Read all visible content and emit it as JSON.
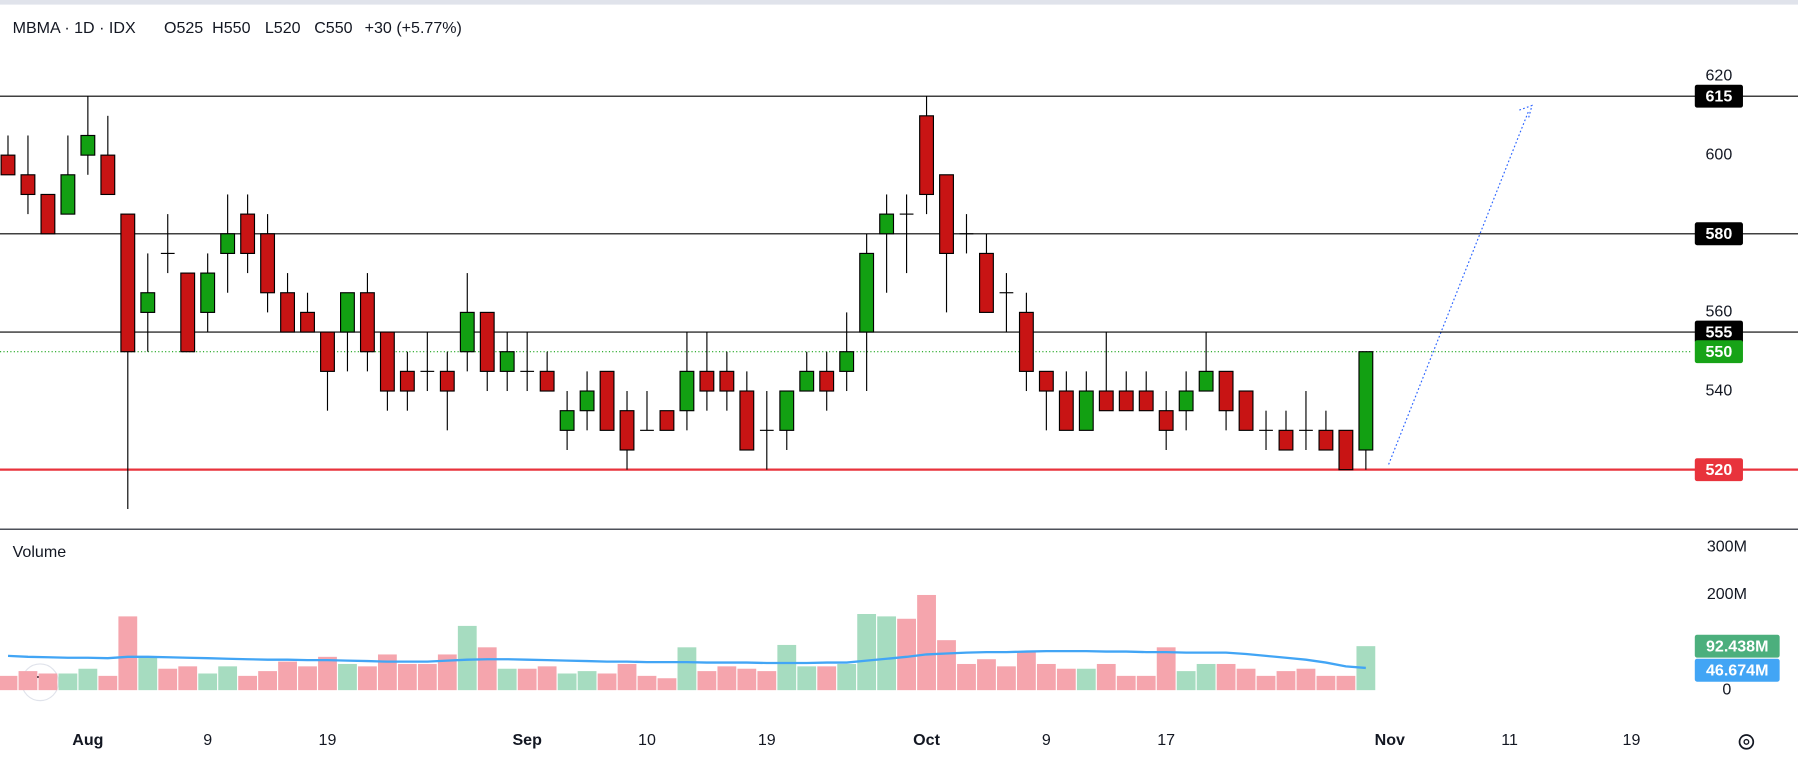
{
  "chart_data": {
    "type": "candlestick",
    "header": {
      "symbol": "MBMA · 1D · IDX",
      "open": "O525",
      "high": "H550",
      "low": "L520",
      "close": "C550",
      "change": "+30 (+5.77%)"
    },
    "xlim": [
      -0.4,
      84.3
    ],
    "xticks": [
      {
        "value": 4,
        "label": "Aug"
      },
      {
        "value": 10,
        "label": "9"
      },
      {
        "value": 16,
        "label": "19"
      },
      {
        "value": 26,
        "label": "Sep"
      },
      {
        "value": 32,
        "label": "10"
      },
      {
        "value": 38,
        "label": "19"
      },
      {
        "value": 46,
        "label": "Oct"
      },
      {
        "value": 52,
        "label": "9"
      },
      {
        "value": 58,
        "label": "17"
      },
      {
        "value": 69.2,
        "label": "Nov"
      },
      {
        "value": 75.2,
        "label": "11"
      },
      {
        "value": 81.3,
        "label": "19"
      }
    ],
    "ylim": [
      505,
      638
    ],
    "yticks": [
      540,
      560,
      600,
      620
    ],
    "up_color": "#12a012",
    "down_color": "#c81414",
    "candles": {
      "open": [
        600,
        595,
        590,
        585,
        600,
        600,
        585,
        560,
        575,
        570,
        560,
        575,
        585,
        580,
        565,
        560,
        555,
        555,
        565,
        555,
        545,
        545,
        545,
        550,
        560,
        545,
        545,
        545,
        530,
        535,
        545,
        535,
        530,
        535,
        535,
        545,
        545,
        540,
        530,
        530,
        540,
        545,
        545,
        555,
        580,
        585,
        610,
        595,
        580,
        575,
        565,
        560,
        545,
        540,
        530,
        540,
        540,
        540,
        535,
        535,
        540,
        545,
        540,
        530,
        530,
        530,
        530,
        530,
        525
      ],
      "high": [
        605,
        605,
        590,
        605,
        615,
        610,
        585,
        575,
        585,
        570,
        575,
        590,
        590,
        585,
        570,
        565,
        555,
        565,
        570,
        555,
        550,
        555,
        550,
        570,
        560,
        555,
        555,
        550,
        540,
        545,
        545,
        540,
        540,
        535,
        555,
        555,
        550,
        545,
        540,
        540,
        550,
        550,
        560,
        580,
        590,
        590,
        615,
        595,
        585,
        580,
        570,
        565,
        545,
        545,
        545,
        555,
        545,
        545,
        540,
        545,
        555,
        545,
        540,
        535,
        535,
        540,
        535,
        530,
        550
      ],
      "low": [
        595,
        585,
        580,
        585,
        595,
        590,
        510,
        550,
        570,
        550,
        555,
        565,
        570,
        560,
        555,
        555,
        535,
        545,
        545,
        535,
        535,
        540,
        530,
        545,
        540,
        540,
        540,
        540,
        525,
        530,
        530,
        520,
        530,
        530,
        530,
        535,
        535,
        525,
        520,
        525,
        540,
        535,
        540,
        540,
        565,
        570,
        585,
        560,
        575,
        560,
        555,
        540,
        530,
        530,
        530,
        535,
        535,
        535,
        525,
        530,
        540,
        530,
        530,
        525,
        525,
        525,
        525,
        520,
        520
      ],
      "close": [
        595,
        590,
        580,
        595,
        605,
        590,
        550,
        565,
        575,
        550,
        570,
        580,
        575,
        565,
        555,
        555,
        545,
        565,
        550,
        540,
        540,
        545,
        540,
        560,
        545,
        550,
        545,
        540,
        535,
        540,
        530,
        525,
        530,
        530,
        545,
        540,
        540,
        525,
        530,
        540,
        545,
        540,
        550,
        575,
        585,
        585,
        590,
        575,
        580,
        560,
        565,
        545,
        540,
        530,
        540,
        535,
        535,
        535,
        530,
        540,
        545,
        535,
        530,
        530,
        525,
        530,
        525,
        520,
        550
      ]
    },
    "levels": [
      {
        "value": 615,
        "color": "#000000"
      },
      {
        "value": 580,
        "color": "#000000"
      },
      {
        "value": 555,
        "color": "#000000"
      },
      {
        "value": 520,
        "color": "#e8333c"
      }
    ],
    "last_price_color": "#17a317",
    "volume": {
      "label": "Volume",
      "ylim": [
        -63,
        337
      ],
      "yticks": [
        {
          "value": 0,
          "label": "0"
        },
        {
          "value": 200,
          "label": "200M"
        },
        {
          "value": 300,
          "label": "300M"
        }
      ],
      "up_color": "#a6dcc0",
      "down_color": "#f5a5ad",
      "last_color": "#4caf7d",
      "values": [
        30,
        40,
        35,
        35,
        45,
        30,
        155,
        70,
        45,
        50,
        35,
        50,
        30,
        40,
        60,
        50,
        70,
        55,
        50,
        75,
        55,
        55,
        75,
        135,
        90,
        45,
        45,
        50,
        35,
        40,
        35,
        55,
        30,
        25,
        90,
        40,
        50,
        45,
        40,
        95,
        50,
        50,
        55,
        160,
        155,
        150,
        200,
        105,
        55,
        65,
        50,
        80,
        55,
        45,
        45,
        55,
        30,
        30,
        90,
        40,
        55,
        55,
        45,
        30,
        40,
        45,
        30,
        30,
        92.438
      ],
      "last_label": "92.438M",
      "ma": {
        "color": "#42a5f5",
        "last_label": "46.674M",
        "values": [
          72,
          70,
          69,
          68,
          68,
          67,
          70,
          70,
          69,
          68,
          67,
          66,
          65,
          64,
          64,
          63,
          63,
          62,
          61,
          60,
          60,
          60,
          62,
          64,
          65,
          65,
          64,
          63,
          62,
          61,
          60,
          60,
          59,
          59,
          59,
          58,
          58,
          58,
          57,
          57,
          57,
          58,
          58,
          62,
          66,
          70,
          75,
          77,
          79,
          80,
          80,
          81,
          82,
          82,
          82,
          81,
          81,
          80,
          80,
          79,
          79,
          79,
          76,
          72,
          68,
          64,
          58,
          50,
          46.674
        ]
      }
    }
  }
}
